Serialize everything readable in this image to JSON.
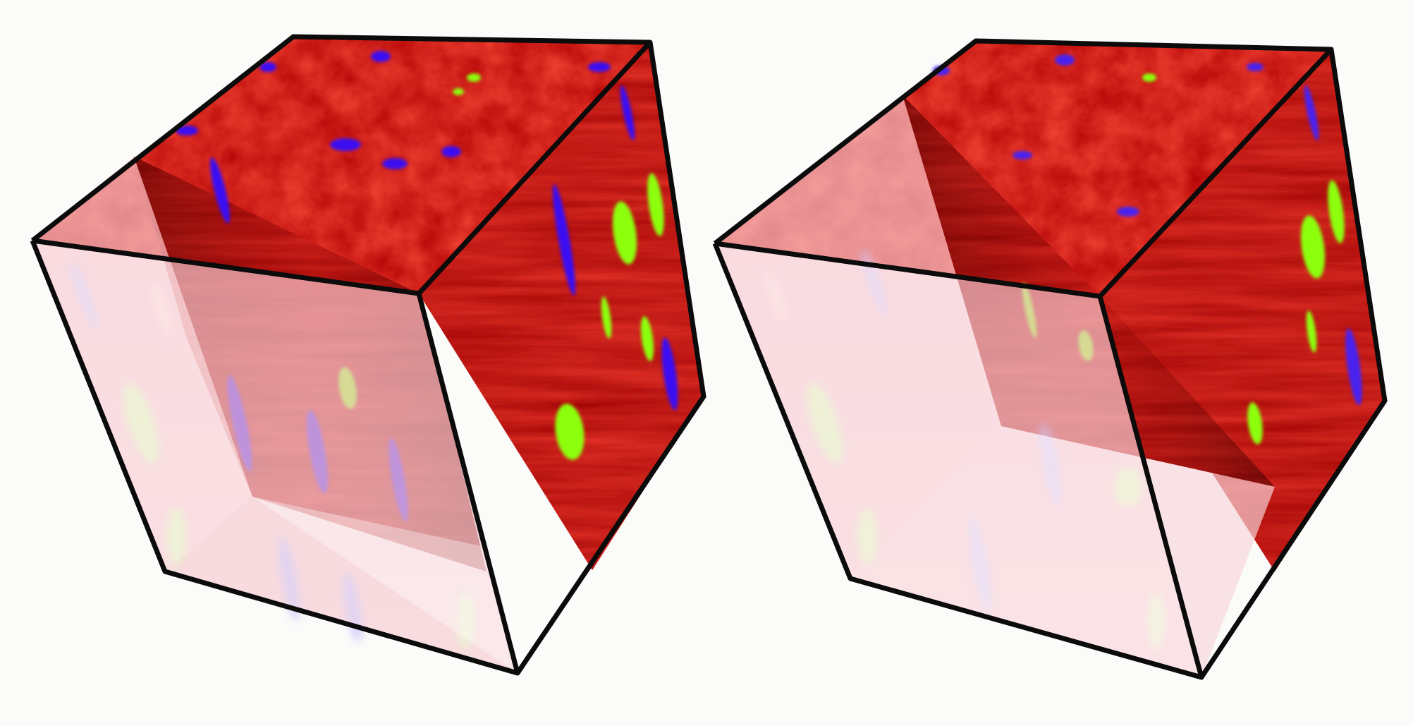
{
  "image": {
    "subject": "",
    "views": [
      {
        "id": "left-cube",
        "label": "",
        "cutaway_depth": 0.36,
        "colors": {
          "edge": "#0b0b0b",
          "tissue_dark": "#5c0000",
          "tissue_red": "#d80d0d",
          "tissue_bright": "#ff3e20",
          "nucleus_blue": "#3a10f2",
          "signal_green": "#8cff10",
          "translucent_face": "#f6d6dc"
        }
      },
      {
        "id": "right-cube",
        "label": "",
        "cutaway_depth": 0.5,
        "colors": {
          "edge": "#0b0b0b",
          "tissue_dark": "#5a0000",
          "tissue_red": "#cf1010",
          "tissue_bright": "#ff4424",
          "nucleus_blue": "#4a22f0",
          "signal_green": "#8cff10",
          "translucent_face": "#f4d8de"
        }
      }
    ]
  }
}
